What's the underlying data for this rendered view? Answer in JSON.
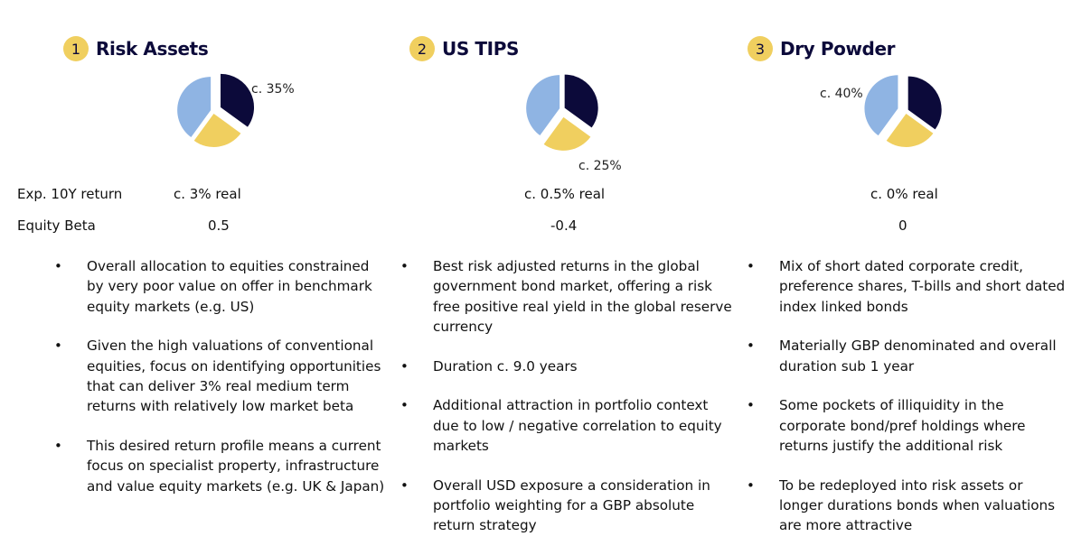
{
  "colors": {
    "navy": "#0c0a3a",
    "yellow": "#f0cf5f",
    "blue": "#8fb4e3"
  },
  "row_labels": {
    "return": "Exp. 10Y return",
    "beta": "Equity Beta"
  },
  "columns": [
    {
      "num": "1",
      "title": "Risk Assets",
      "pct": "c. 35%",
      "return": "c. 3% real",
      "beta": "0.5",
      "pie": {
        "navy": 0.35,
        "yellow": 0.25,
        "blue": 0.4,
        "highlight": "navy"
      },
      "bullets": [
        "Overall allocation to equities constrained by very poor value on offer in benchmark equity markets (e.g. US)",
        "Given the high valuations of conventional equities, focus on identifying opportunities that can deliver 3% real medium term returns with relatively low market beta",
        "This desired return profile means a current focus on specialist property, infrastructure and value equity markets (e.g. UK & Japan)"
      ]
    },
    {
      "num": "2",
      "title": "US TIPS",
      "pct": "c. 25%",
      "return": "c. 0.5% real",
      "beta": "-0.4",
      "pie": {
        "navy": 0.35,
        "yellow": 0.25,
        "blue": 0.4,
        "highlight": "yellow"
      },
      "bullets": [
        "Best risk adjusted returns in the global government bond market, offering a risk free positive real yield in the global reserve currency",
        "Duration c. 9.0 years",
        "Additional attraction in portfolio context due to low / negative correlation to equity markets",
        "Overall USD exposure a consideration in portfolio weighting for a GBP absolute return strategy"
      ]
    },
    {
      "num": "3",
      "title": "Dry Powder",
      "pct": "c. 40%",
      "return": "c. 0% real",
      "beta": "0",
      "pie": {
        "navy": 0.35,
        "yellow": 0.25,
        "blue": 0.4,
        "highlight": "blue"
      },
      "bullets": [
        "Mix of short dated corporate credit, preference shares, T-bills and short dated index linked bonds",
        "Materially GBP denominated and overall duration sub 1 year",
        "Some pockets of illiquidity in the corporate bond/pref holdings where returns justify the additional risk",
        "To be redeployed into risk assets or longer durations bonds when valuations are more attractive"
      ]
    }
  ]
}
